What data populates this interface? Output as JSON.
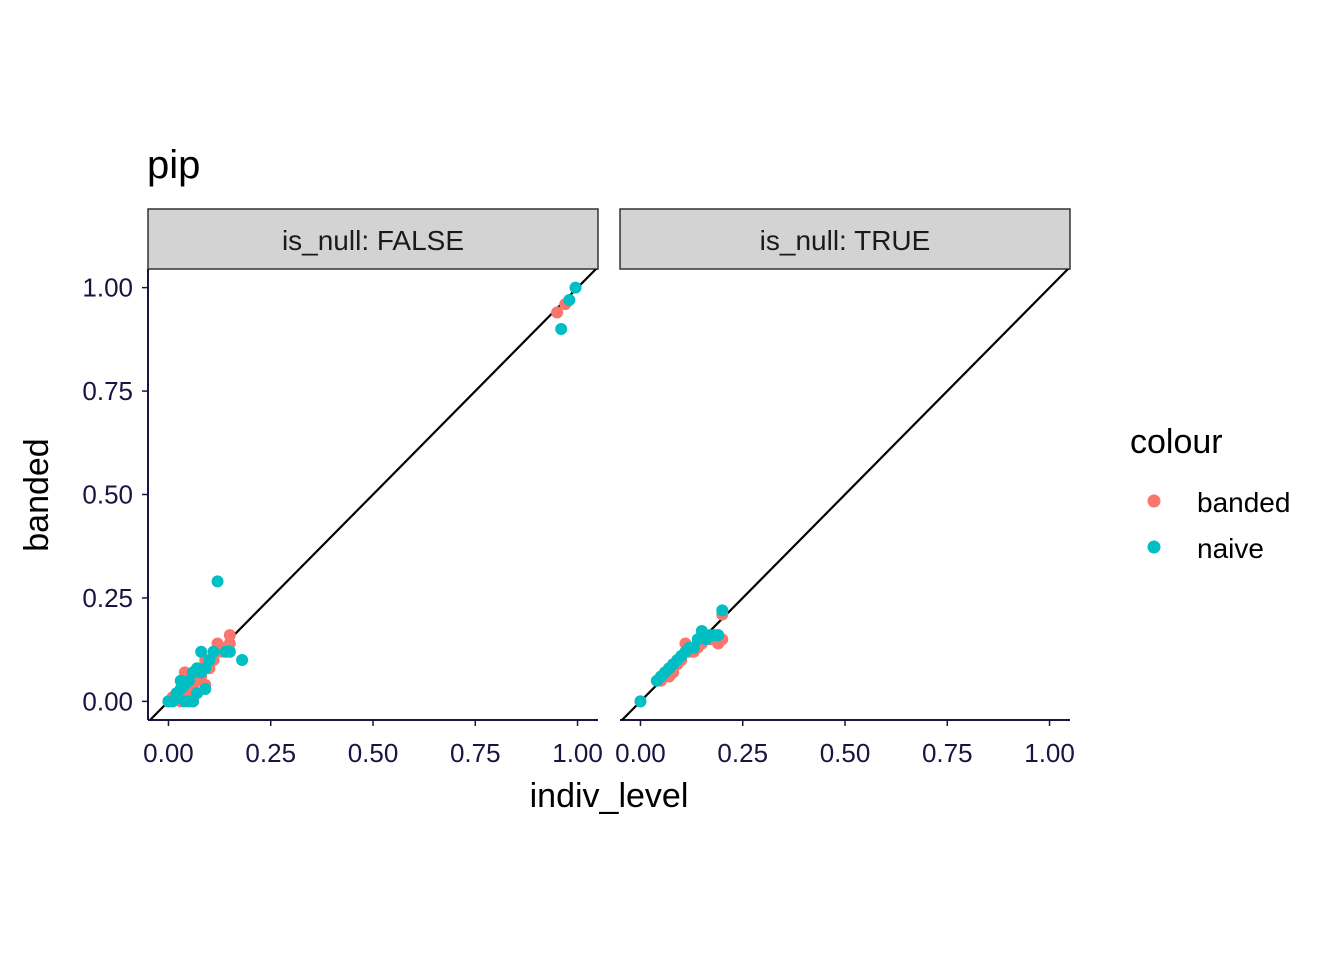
{
  "chart_data": {
    "type": "scatter",
    "title": "pip",
    "xlabel": "indiv_level",
    "ylabel": "banded",
    "xlim": [
      -0.05,
      1.05
    ],
    "ylim": [
      -0.045,
      1.045
    ],
    "x_ticks": [
      "0.00",
      "0.25",
      "0.50",
      "0.75",
      "1.00"
    ],
    "y_ticks": [
      "0.00",
      "0.25",
      "0.50",
      "0.75",
      "1.00"
    ],
    "reference_line": "y = x",
    "legend": {
      "title": "colour",
      "position": "right",
      "entries": [
        {
          "label": "banded",
          "color": "#F8766D"
        },
        {
          "label": "naive",
          "color": "#00BFC4"
        }
      ]
    },
    "panels": [
      {
        "strip": "is_null: FALSE",
        "series": [
          {
            "name": "banded",
            "color": "#F8766D",
            "points": [
              [
                0.0,
                0.0
              ],
              [
                0.01,
                0.01
              ],
              [
                0.02,
                0.005
              ],
              [
                0.03,
                0.02
              ],
              [
                0.04,
                0.03
              ],
              [
                0.05,
                0.05
              ],
              [
                0.06,
                0.06
              ],
              [
                0.07,
                0.05
              ],
              [
                0.08,
                0.08
              ],
              [
                0.09,
                0.1
              ],
              [
                0.1,
                0.08
              ],
              [
                0.1,
                0.09
              ],
              [
                0.11,
                0.1
              ],
              [
                0.12,
                0.14
              ],
              [
                0.13,
                0.12
              ],
              [
                0.14,
                0.13
              ],
              [
                0.15,
                0.14
              ],
              [
                0.15,
                0.16
              ],
              [
                0.07,
                0.02
              ],
              [
                0.09,
                0.04
              ],
              [
                0.05,
                0.01
              ],
              [
                0.06,
                0.03
              ],
              [
                0.08,
                0.06
              ],
              [
                0.03,
                0.0
              ],
              [
                0.06,
                0.0
              ],
              [
                0.04,
                0.07
              ],
              [
                0.95,
                0.94
              ],
              [
                0.97,
                0.96
              ]
            ]
          },
          {
            "name": "naive",
            "color": "#00BFC4",
            "points": [
              [
                0.0,
                0.0
              ],
              [
                0.01,
                0.0
              ],
              [
                0.02,
                0.01
              ],
              [
                0.03,
                0.03
              ],
              [
                0.04,
                0.04
              ],
              [
                0.04,
                0.0
              ],
              [
                0.05,
                0.05
              ],
              [
                0.05,
                0.0
              ],
              [
                0.06,
                0.07
              ],
              [
                0.06,
                0.0
              ],
              [
                0.07,
                0.08
              ],
              [
                0.07,
                0.02
              ],
              [
                0.08,
                0.12
              ],
              [
                0.08,
                0.07
              ],
              [
                0.09,
                0.03
              ],
              [
                0.1,
                0.1
              ],
              [
                0.11,
                0.12
              ],
              [
                0.12,
                0.29
              ],
              [
                0.14,
                0.12
              ],
              [
                0.15,
                0.12
              ],
              [
                0.18,
                0.1
              ],
              [
                0.03,
                0.05
              ],
              [
                0.02,
                0.02
              ],
              [
                0.09,
                0.08
              ],
              [
                0.96,
                0.9
              ],
              [
                0.98,
                0.97
              ],
              [
                0.995,
                1.0
              ]
            ]
          }
        ]
      },
      {
        "strip": "is_null: TRUE",
        "series": [
          {
            "name": "banded",
            "color": "#F8766D",
            "points": [
              [
                0.0,
                0.0
              ],
              [
                0.05,
                0.05
              ],
              [
                0.06,
                0.06
              ],
              [
                0.07,
                0.06
              ],
              [
                0.08,
                0.07
              ],
              [
                0.09,
                0.09
              ],
              [
                0.1,
                0.1
              ],
              [
                0.11,
                0.14
              ],
              [
                0.12,
                0.12
              ],
              [
                0.13,
                0.12
              ],
              [
                0.14,
                0.13
              ],
              [
                0.15,
                0.14
              ],
              [
                0.16,
                0.15
              ],
              [
                0.17,
                0.15
              ],
              [
                0.18,
                0.15
              ],
              [
                0.19,
                0.14
              ],
              [
                0.2,
                0.15
              ],
              [
                0.2,
                0.21
              ]
            ]
          },
          {
            "name": "naive",
            "color": "#00BFC4",
            "points": [
              [
                0.0,
                0.0
              ],
              [
                0.04,
                0.05
              ],
              [
                0.05,
                0.06
              ],
              [
                0.06,
                0.07
              ],
              [
                0.07,
                0.08
              ],
              [
                0.08,
                0.09
              ],
              [
                0.09,
                0.1
              ],
              [
                0.1,
                0.11
              ],
              [
                0.11,
                0.12
              ],
              [
                0.12,
                0.13
              ],
              [
                0.13,
                0.13
              ],
              [
                0.14,
                0.15
              ],
              [
                0.15,
                0.17
              ],
              [
                0.16,
                0.15
              ],
              [
                0.17,
                0.16
              ],
              [
                0.18,
                0.16
              ],
              [
                0.19,
                0.16
              ],
              [
                0.2,
                0.22
              ]
            ]
          }
        ]
      }
    ]
  }
}
